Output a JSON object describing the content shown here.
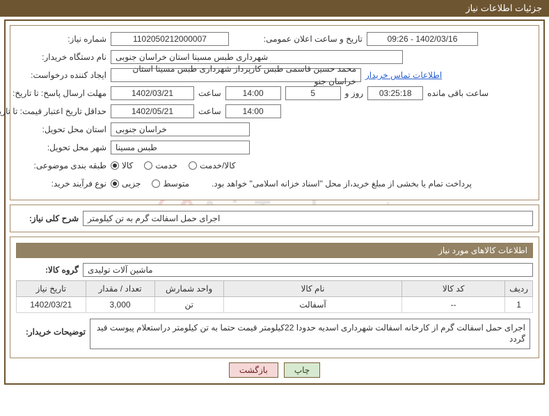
{
  "page_title": "جزئیات اطلاعات نیاز",
  "watermark": {
    "text_main": "AriaTender",
    "text_accent": ".net"
  },
  "fields": {
    "need_no_label": "شماره نیاز:",
    "need_no": "1102050212000007",
    "announce_label": "تاریخ و ساعت اعلان عمومی:",
    "announce_value": "1402/03/16 - 09:26",
    "buyer_org_label": "نام دستگاه خریدار:",
    "buyer_org": "شهرداری طبس مسینا استان خراسان جنوبی",
    "requester_label": "ایجاد کننده درخواست:",
    "requester": "محمد حسین قاسمی طبس کارپرداز شهرداری طبس مسینا استان خراسان جنو",
    "contact_link": "اطلاعات تماس خریدار",
    "deadline_label": "مهلت ارسال پاسخ: تا تاریخ:",
    "deadline_date": "1402/03/21",
    "time_label": "ساعت",
    "deadline_time": "14:00",
    "days_left_value": "5",
    "days_and": "روز و",
    "countdown": "03:25:18",
    "remaining_label": "ساعت باقی مانده",
    "validity_label": "حداقل تاریخ اعتبار قیمت: تا تاریخ:",
    "validity_date": "1402/05/21",
    "validity_time": "14:00",
    "province_label": "استان محل تحویل:",
    "province": "خراسان جنوبی",
    "city_label": "شهر محل تحویل:",
    "city": "طبس مسینا",
    "category_label": "طبقه بندی موضوعی:",
    "purchase_type_label": "نوع فرآیند خرید:",
    "payment_note": "پرداخت تمام یا بخشی از مبلغ خرید،از محل \"اسناد خزانه اسلامی\" خواهد بود.",
    "summary_label": "شرح کلی نیاز:",
    "summary": "اجرای حمل اسفالت گرم به تن کیلومتر",
    "goods_info_header": "اطلاعات کالاهای مورد نیاز",
    "group_label": "گروه کالا:",
    "group": "ماشین آلات تولیدی",
    "buyer_desc_label": "توضیحات خریدار:",
    "buyer_desc": "اجرای حمل اسفالت گرم از کارخانه اسفالت شهرداری اسدیه حدودا 22کیلومتر قیمت حتما به تن کیلومتر دراستعلام پیوست قید گردد"
  },
  "category_radios": {
    "options": [
      {
        "label": "کالا",
        "checked": true
      },
      {
        "label": "خدمت",
        "checked": false
      },
      {
        "label": "کالا/خدمت",
        "checked": false
      }
    ]
  },
  "purchase_radios": {
    "options": [
      {
        "label": "جزیی",
        "checked": true
      },
      {
        "label": "متوسط",
        "checked": false
      }
    ]
  },
  "table": {
    "headers": {
      "row": "ردیف",
      "code": "کد کالا",
      "name": "نام کالا",
      "unit": "واحد شمارش",
      "qty": "تعداد / مقدار",
      "date": "تاریخ نیاز"
    },
    "col_widths": {
      "row": 36,
      "code": 150,
      "name": 260,
      "unit": 100,
      "qty": 100,
      "date": 100
    },
    "rows": [
      {
        "row": "1",
        "code": "--",
        "name": "آسفالت",
        "unit": "تن",
        "qty": "3,000",
        "date": "1402/03/21"
      }
    ]
  },
  "buttons": {
    "print": "چاپ",
    "back": "بازگشت"
  },
  "colors": {
    "title_bg": "#6e5531",
    "frame_border": "#6e5531",
    "panel_border": "#a38a68",
    "section_bg": "#938263",
    "btn_print_bg": "#d7e9d0",
    "btn_back_bg": "#f5d7d7"
  }
}
